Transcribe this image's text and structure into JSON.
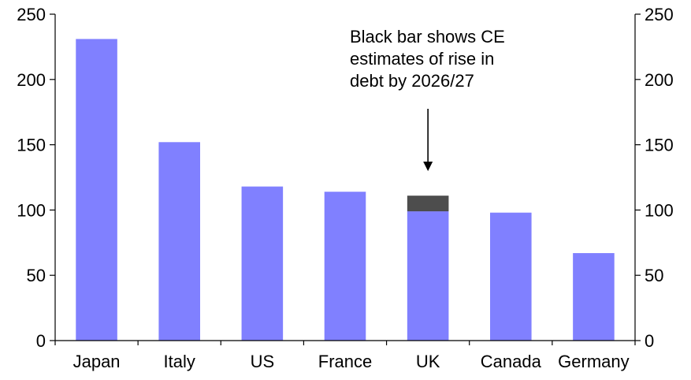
{
  "chart_data": {
    "type": "bar",
    "title": "",
    "xlabel": "",
    "ylabel": "",
    "ylim": [
      0,
      250
    ],
    "yticks": [
      0,
      50,
      100,
      150,
      200,
      250
    ],
    "grid": false,
    "legend": "none",
    "categories": [
      "Japan",
      "Italy",
      "US",
      "France",
      "UK",
      "Canada",
      "Germany"
    ],
    "series": [
      {
        "values": [
          231,
          152,
          118,
          114,
          99,
          98,
          67
        ],
        "color": "#8080FF"
      },
      {
        "values": [
          0,
          0,
          0,
          0,
          12,
          0,
          0
        ],
        "color": "#4D4D4D"
      }
    ],
    "annotation": {
      "lines": [
        "Black bar shows CE",
        "estimates of rise in",
        "debt by 2026/27"
      ],
      "points_to": "UK"
    },
    "colors": {
      "axis": "#000000"
    }
  }
}
